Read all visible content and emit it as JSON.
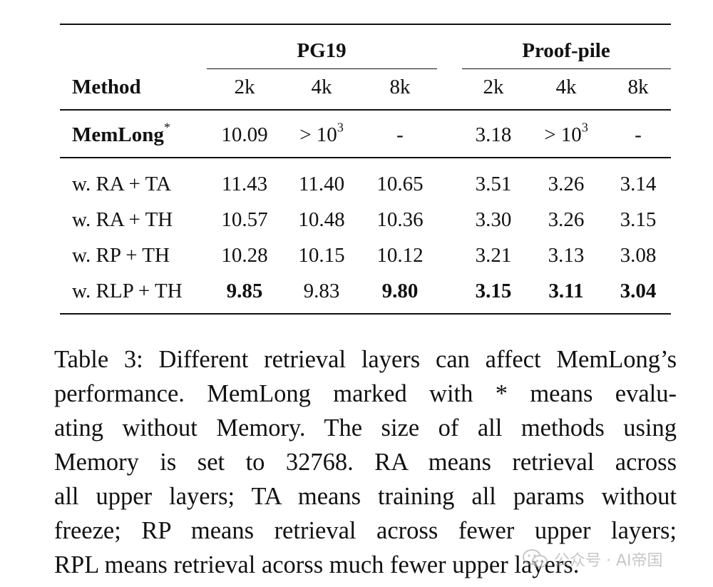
{
  "table": {
    "group_headers": [
      "PG19",
      "Proof-pile"
    ],
    "method_header": "Method",
    "column_headers": [
      "2k",
      "4k",
      "8k",
      "2k",
      "4k",
      "8k"
    ],
    "baseline_row": {
      "method_prefix": "MemLong",
      "method_sup": "*",
      "cells": [
        {
          "text": "10.09"
        },
        {
          "prefix": "> 10",
          "sup": "3"
        },
        {
          "text": "-"
        },
        {
          "text": "3.18"
        },
        {
          "prefix": "> 10",
          "sup": "3"
        },
        {
          "text": "-"
        }
      ]
    },
    "rows": [
      {
        "method": "w. RA + TA",
        "values": [
          "11.43",
          "11.40",
          "10.65",
          "3.51",
          "3.26",
          "3.14"
        ],
        "bold": [
          false,
          false,
          false,
          false,
          false,
          false
        ]
      },
      {
        "method": "w. RA + TH",
        "values": [
          "10.57",
          "10.48",
          "10.36",
          "3.30",
          "3.26",
          "3.15"
        ],
        "bold": [
          false,
          false,
          false,
          false,
          false,
          false
        ]
      },
      {
        "method": "w. RP + TH",
        "values": [
          "10.28",
          "10.15",
          "10.12",
          "3.21",
          "3.13",
          "3.08"
        ],
        "bold": [
          false,
          false,
          false,
          false,
          false,
          false
        ]
      },
      {
        "method": "w. RLP + TH",
        "values": [
          "9.85",
          "9.83",
          "9.80",
          "3.15",
          "3.11",
          "3.04"
        ],
        "bold": [
          true,
          false,
          true,
          true,
          true,
          true
        ]
      }
    ]
  },
  "caption": {
    "lines": [
      "Table 3: Different retrieval layers can affect MemLong’s",
      "performance. MemLong marked with * means evalu-",
      "ating without Memory. The size of all methods using",
      "Memory is set to 32768. RA means retrieval across",
      "all upper layers; TA means training all params without",
      "freeze; RP means retrieval across fewer upper layers;",
      "RPL means retrieval acorss much fewer upper layers."
    ]
  },
  "watermark": {
    "text": "公众号 · AI帝国",
    "icon": "wechat-icon"
  }
}
